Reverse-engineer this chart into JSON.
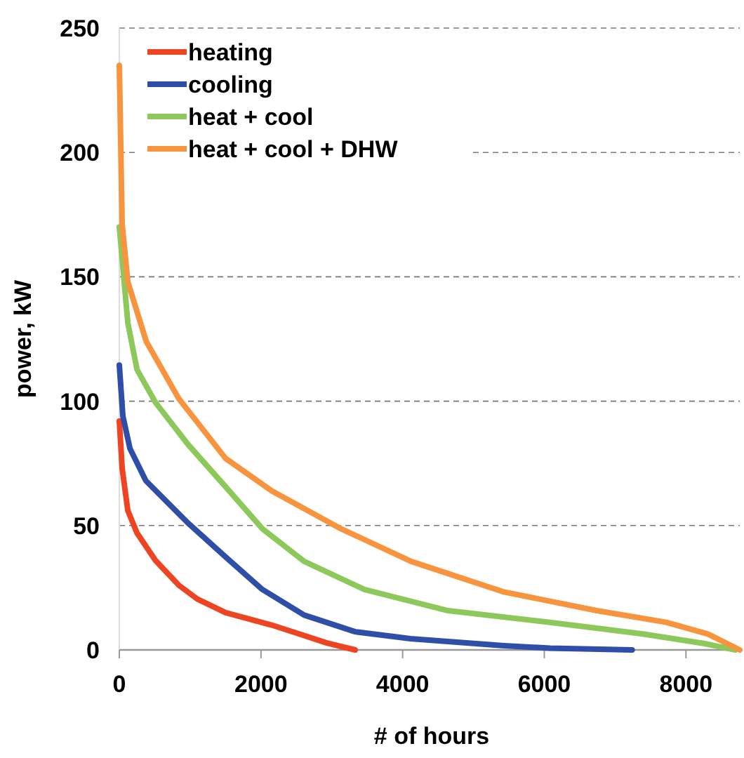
{
  "chart_data": {
    "type": "line",
    "xlabel": "# of hours",
    "ylabel": "power, kW",
    "xlim": [
      0,
      8760
    ],
    "xticks": [
      0,
      2000,
      4000,
      6000,
      8000
    ],
    "ylim": [
      0,
      250
    ],
    "yticks": [
      0,
      50,
      100,
      150,
      200,
      250
    ],
    "grid": "y",
    "legend": "top left",
    "line_style": "solid",
    "series": [
      {
        "name": "heating",
        "color": "#ee4422",
        "x": [
          0,
          40,
          120,
          250,
          510,
          840,
          1100,
          1500,
          2150,
          2540,
          2930,
          3330
        ],
        "values": [
          92,
          73,
          56,
          47,
          36,
          26,
          20.5,
          15,
          10,
          6.4,
          2.8,
          0
        ]
      },
      {
        "name": "cooling",
        "color": "#2e4ea8",
        "x": [
          0,
          50,
          150,
          375,
          970,
          1500,
          2020,
          2610,
          3330,
          4110,
          5430,
          6080,
          7240
        ],
        "values": [
          114.5,
          94,
          81,
          68,
          51,
          37.4,
          24.3,
          14,
          7.3,
          4.5,
          1.7,
          0.7,
          0
        ]
      },
      {
        "name": "heat + cool",
        "color": "#8dc85a",
        "x": [
          0,
          120,
          250,
          510,
          970,
          1500,
          2020,
          2610,
          3460,
          4640,
          6080,
          7390,
          8250,
          8700
        ],
        "values": [
          170,
          131.5,
          112.7,
          99.5,
          82.6,
          65.6,
          48.7,
          35.6,
          24.3,
          15.8,
          11.1,
          6.4,
          2.6,
          0
        ]
      },
      {
        "name": "heat + cool + DHW",
        "color": "#f7943d",
        "x": [
          0,
          40,
          120,
          380,
          840,
          1500,
          2150,
          3130,
          4120,
          5430,
          6740,
          7720,
          8310,
          8760
        ],
        "values": [
          235,
          171,
          148,
          124,
          101,
          77,
          64,
          48.7,
          35.6,
          23.3,
          15.8,
          11.1,
          6.4,
          0
        ]
      }
    ]
  }
}
